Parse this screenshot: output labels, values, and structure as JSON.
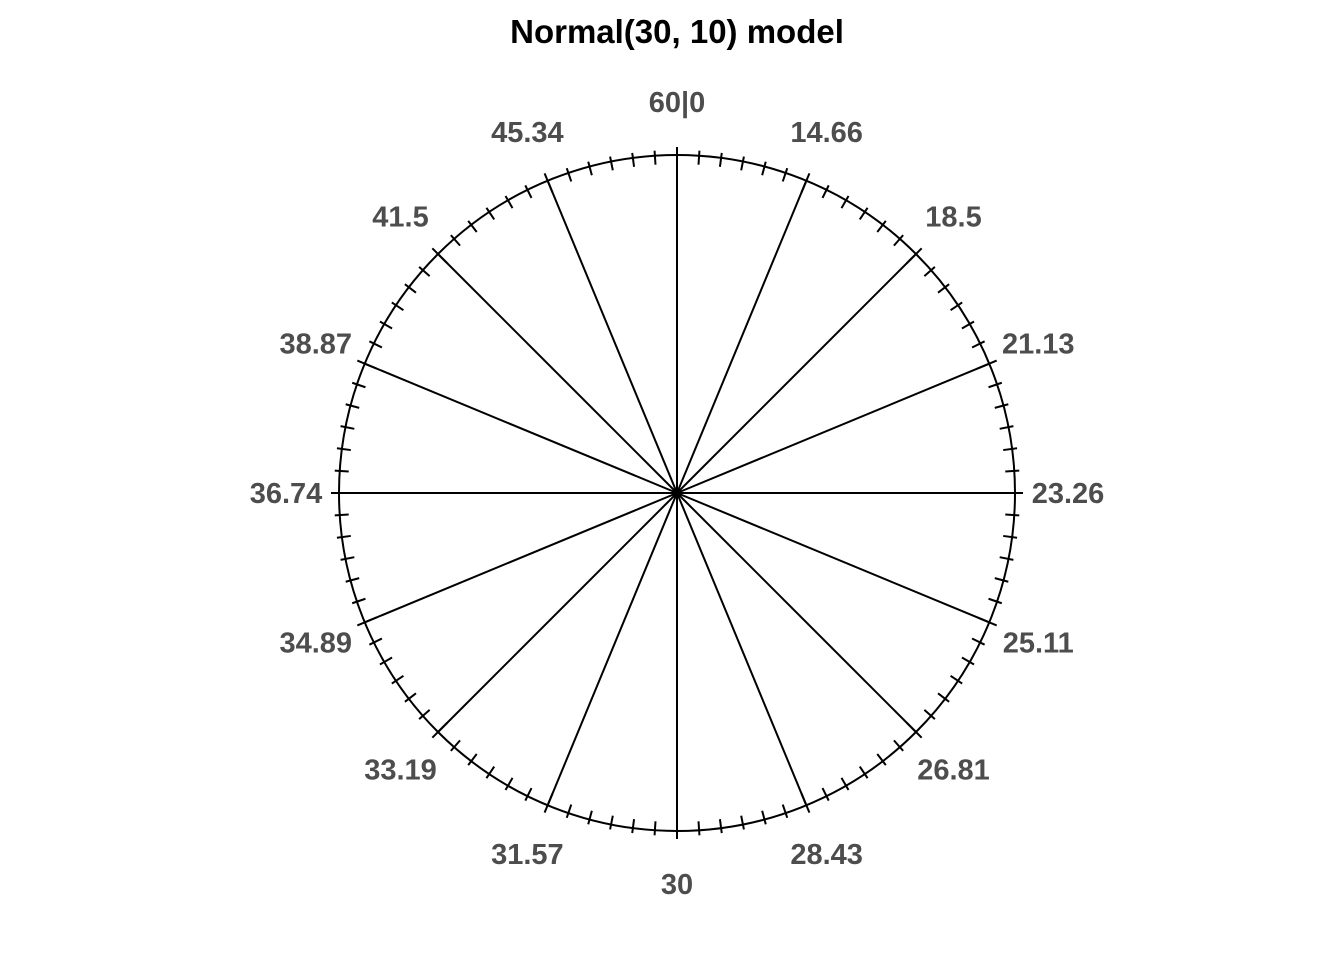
{
  "chart_data": {
    "type": "pie",
    "subtype": "spinner-equal-probability-wheel",
    "title": "Normal(30, 10) model",
    "num_sectors": 16,
    "sector_probability": 0.0625,
    "boundary_labels": [
      "60|0",
      "14.66",
      "18.5",
      "21.13",
      "23.26",
      "25.11",
      "26.81",
      "28.43",
      "30",
      "31.57",
      "33.19",
      "34.89",
      "36.74",
      "38.87",
      "41.5",
      "45.34"
    ],
    "boundary_quantile_values": [
      0,
      14.66,
      18.5,
      21.13,
      23.26,
      25.11,
      26.81,
      28.43,
      30,
      31.57,
      33.19,
      34.89,
      36.74,
      38.87,
      41.5,
      45.34
    ],
    "top_label_note": "top boundary shows both 60 (p=1) and 0 (p=0)",
    "boundary_angles_deg_clockwise_from_top": [
      0,
      22.5,
      45,
      67.5,
      90,
      112.5,
      135,
      157.5,
      180,
      202.5,
      225,
      247.5,
      270,
      292.5,
      315,
      337.5
    ],
    "minor_ticks_per_sector": 5,
    "legend": "none",
    "grid": "off",
    "colors": {
      "line": "#000000",
      "label": "#4d4d4d",
      "title": "#000000",
      "background": "#ffffff"
    }
  }
}
